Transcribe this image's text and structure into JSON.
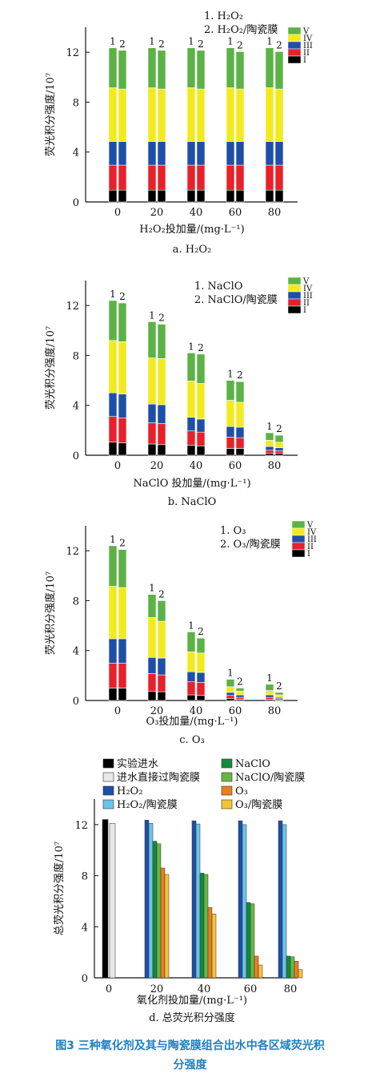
{
  "figure_caption_line1": "图3   三种氧化剂及其与陶瓷膜组合出水中各区域荧光积",
  "figure_caption_line2": "分强度",
  "region_colors": {
    "I": "#000000",
    "II": "#e8202a",
    "III": "#1e4fa8",
    "IV": "#f3ea1d",
    "V": "#5cb246"
  },
  "chart_data": [
    {
      "type": "bar",
      "stacked": true,
      "title": "a. H₂O₂",
      "xlabel": "H₂O₂投加量/(mg·L⁻¹)",
      "ylabel": "荧光积分强度/10⁷",
      "ylim": [
        0,
        14
      ],
      "yticks": [
        0,
        4,
        8,
        12
      ],
      "categories": [
        "0",
        "20",
        "40",
        "60",
        "80"
      ],
      "bar_labels": [
        "1",
        "2"
      ],
      "legend_lines": [
        "1. H₂O₂",
        "2. H₂O₂/陶瓷膜"
      ],
      "regions": [
        "I",
        "II",
        "III",
        "IV",
        "V"
      ],
      "series": [
        {
          "name": "1",
          "stacks": [
            [
              0.95,
              2.0,
              1.9,
              4.3,
              3.2
            ],
            [
              0.95,
              2.0,
              1.9,
              4.3,
              3.2
            ],
            [
              0.95,
              2.0,
              1.9,
              4.3,
              3.2
            ],
            [
              0.95,
              2.0,
              1.9,
              4.3,
              3.2
            ],
            [
              0.95,
              2.0,
              1.9,
              4.3,
              3.2
            ]
          ]
        },
        {
          "name": "2",
          "stacks": [
            [
              0.95,
              2.0,
              1.9,
              4.2,
              3.1
            ],
            [
              0.95,
              2.0,
              1.9,
              4.2,
              3.1
            ],
            [
              0.95,
              2.0,
              1.9,
              4.2,
              3.1
            ],
            [
              0.95,
              2.0,
              1.9,
              4.2,
              3.0
            ],
            [
              0.95,
              2.0,
              1.9,
              4.2,
              3.0
            ]
          ]
        }
      ]
    },
    {
      "type": "bar",
      "stacked": true,
      "title": "b. NaClO",
      "xlabel": "NaClO 投加量/(mg·L⁻¹)",
      "ylabel": "荧光积分强度/10⁷",
      "ylim": [
        0,
        14
      ],
      "yticks": [
        0,
        4,
        8,
        12
      ],
      "categories": [
        "0",
        "20",
        "40",
        "60",
        "80"
      ],
      "bar_labels": [
        "1",
        "2"
      ],
      "legend_lines": [
        "1. NaClO",
        "2. NaClO/陶瓷膜"
      ],
      "regions": [
        "I",
        "II",
        "III",
        "IV",
        "V"
      ],
      "series": [
        {
          "name": "1",
          "stacks": [
            [
              1.05,
              2.05,
              1.9,
              4.2,
              3.2
            ],
            [
              0.9,
              1.7,
              1.5,
              3.7,
              2.9
            ],
            [
              0.8,
              1.15,
              1.1,
              2.9,
              2.25
            ],
            [
              0.55,
              0.9,
              0.85,
              2.1,
              1.6
            ],
            [
              0.15,
              0.25,
              0.3,
              0.5,
              0.6
            ]
          ]
        },
        {
          "name": "2",
          "stacks": [
            [
              1.0,
              2.0,
              1.9,
              4.2,
              3.1
            ],
            [
              0.85,
              1.7,
              1.5,
              3.7,
              2.75
            ],
            [
              0.75,
              1.1,
              1.05,
              2.85,
              2.35
            ],
            [
              0.55,
              0.85,
              0.85,
              2.0,
              1.65
            ],
            [
              0.15,
              0.2,
              0.25,
              0.45,
              0.55
            ]
          ]
        }
      ]
    },
    {
      "type": "bar",
      "stacked": true,
      "title": "c. O₃",
      "xlabel": "O₃投加量/(mg·L⁻¹)",
      "ylabel": "荧光积分强度/10⁷",
      "ylim": [
        0,
        14
      ],
      "yticks": [
        0,
        4,
        8,
        12
      ],
      "categories": [
        "0",
        "20",
        "40",
        "60",
        "80"
      ],
      "bar_labels": [
        "1",
        "2"
      ],
      "legend_lines": [
        "1. O₃",
        "2. O₃/陶瓷膜"
      ],
      "regions": [
        "I",
        "II",
        "III",
        "IV",
        "V"
      ],
      "series": [
        {
          "name": "1",
          "stacks": [
            [
              1.0,
              2.0,
              1.95,
              4.2,
              3.25
            ],
            [
              0.75,
              1.4,
              1.3,
              3.2,
              1.85
            ],
            [
              0.45,
              1.05,
              0.8,
              1.6,
              1.6
            ],
            [
              0.15,
              0.25,
              0.25,
              0.45,
              0.6
            ],
            [
              0.1,
              0.15,
              0.2,
              0.35,
              0.5
            ]
          ]
        },
        {
          "name": "2",
          "stacks": [
            [
              1.0,
              2.0,
              1.95,
              4.1,
              3.05
            ],
            [
              0.7,
              1.35,
              1.35,
              2.95,
              1.65
            ],
            [
              0.4,
              1.05,
              0.8,
              1.55,
              1.2
            ],
            [
              0.1,
              0.15,
              0.2,
              0.3,
              0.25
            ],
            [
              0.05,
              0.1,
              0.1,
              0.2,
              0.2
            ]
          ]
        }
      ]
    },
    {
      "type": "bar",
      "title": "d. 总荧光积分强度",
      "xlabel": "氧化剂投加量/(mg·L⁻¹)",
      "ylabel": "总荧光积分强度/10⁷",
      "ylim": [
        0,
        14
      ],
      "yticks": [
        0,
        4,
        8,
        12
      ],
      "categories": [
        "0",
        "20",
        "40",
        "60",
        "80"
      ],
      "series": [
        {
          "name": "实验进水",
          "color": "#000000",
          "values": [
            12.4,
            null,
            null,
            null,
            null
          ]
        },
        {
          "name": "进水直接过陶瓷膜",
          "color": "#e8e8e8",
          "values": [
            12.1,
            null,
            null,
            null,
            null
          ]
        },
        {
          "name": "H₂O₂",
          "color": "#1e4fa8",
          "values": [
            null,
            12.35,
            12.3,
            12.3,
            12.3
          ]
        },
        {
          "name": "H₂O₂/陶瓷膜",
          "color": "#6cc3e8",
          "values": [
            null,
            12.1,
            12.05,
            12.0,
            12.0
          ]
        },
        {
          "name": "NaClO",
          "color": "#138a3c",
          "values": [
            null,
            10.7,
            8.2,
            5.9,
            1.7
          ]
        },
        {
          "name": "NaClO/陶瓷膜",
          "color": "#66b845",
          "values": [
            null,
            10.5,
            8.1,
            5.8,
            1.65
          ]
        },
        {
          "name": "O₃",
          "color": "#ec7d1f",
          "values": [
            null,
            8.6,
            5.5,
            1.7,
            1.3
          ]
        },
        {
          "name": "O₃/陶瓷膜",
          "color": "#f5c33b",
          "values": [
            null,
            8.1,
            5.0,
            1.0,
            0.65
          ]
        }
      ]
    }
  ]
}
